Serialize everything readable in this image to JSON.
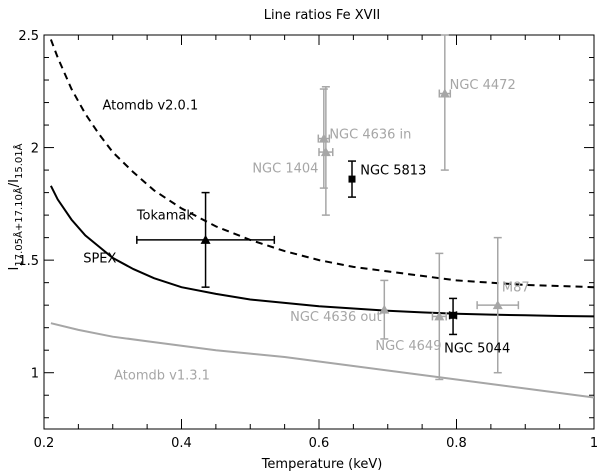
{
  "chart_data": {
    "type": "line",
    "title": "Line ratios Fe XVII",
    "xlabel": "Temperature (keV)",
    "ylabel": {
      "base": "I",
      "num_sub": "17.05Å+17.10Å",
      "slash": "/",
      "base2": "I",
      "den_sub": "15.01Å"
    },
    "xlim": [
      0.2,
      1.0
    ],
    "ylim": [
      0.75,
      2.5
    ],
    "xticks": [
      0.2,
      0.4,
      0.6,
      0.8,
      1.0
    ],
    "xtick_labels": [
      "0.2",
      "0.4",
      "0.6",
      "0.8",
      "1"
    ],
    "yticks": [
      1.0,
      1.5,
      2.0,
      2.5
    ],
    "ytick_labels": [
      "1",
      "1.5",
      "2",
      "2.5"
    ],
    "colors": {
      "black": "#000000",
      "gray": "#a6a6a6"
    },
    "series": [
      {
        "name": "Atomdb v2.0.1",
        "style": "dashed",
        "color": "#000000",
        "x": [
          0.21,
          0.22,
          0.24,
          0.26,
          0.28,
          0.3,
          0.33,
          0.36,
          0.4,
          0.45,
          0.5,
          0.55,
          0.6,
          0.65,
          0.7,
          0.75,
          0.8,
          0.85,
          0.9,
          0.95,
          1.0
        ],
        "y": [
          2.48,
          2.4,
          2.26,
          2.15,
          2.06,
          1.98,
          1.89,
          1.81,
          1.73,
          1.65,
          1.59,
          1.54,
          1.5,
          1.47,
          1.45,
          1.43,
          1.41,
          1.4,
          1.39,
          1.385,
          1.38
        ]
      },
      {
        "name": "SPEX",
        "style": "solid",
        "color": "#000000",
        "x": [
          0.21,
          0.22,
          0.24,
          0.26,
          0.28,
          0.3,
          0.33,
          0.36,
          0.4,
          0.45,
          0.5,
          0.55,
          0.6,
          0.65,
          0.7,
          0.75,
          0.8,
          0.85,
          0.9,
          0.95,
          1.0
        ],
        "y": [
          1.83,
          1.77,
          1.68,
          1.61,
          1.56,
          1.51,
          1.46,
          1.42,
          1.38,
          1.35,
          1.325,
          1.31,
          1.295,
          1.285,
          1.275,
          1.268,
          1.262,
          1.258,
          1.255,
          1.252,
          1.25
        ]
      },
      {
        "name": "Atomdb v1.3.1",
        "style": "solid",
        "color": "#a6a6a6",
        "x": [
          0.21,
          0.25,
          0.3,
          0.35,
          0.4,
          0.45,
          0.5,
          0.55,
          0.6,
          0.65,
          0.7,
          0.75,
          0.8,
          0.85,
          0.9,
          0.95,
          1.0
        ],
        "y": [
          1.22,
          1.19,
          1.16,
          1.14,
          1.12,
          1.1,
          1.085,
          1.07,
          1.05,
          1.03,
          1.01,
          0.99,
          0.97,
          0.95,
          0.93,
          0.91,
          0.89
        ]
      }
    ],
    "points": [
      {
        "name": "Tokamak",
        "marker": "triangle",
        "color": "#000000",
        "x": 0.435,
        "y": 1.59,
        "xlo": 0.335,
        "xhi": 0.535,
        "ylo": 1.38,
        "yhi": 1.8
      },
      {
        "name": "NGC 5813",
        "marker": "square",
        "color": "#000000",
        "x": 0.648,
        "y": 1.86,
        "xlo": 0.648,
        "xhi": 0.648,
        "ylo": 1.78,
        "yhi": 1.94
      },
      {
        "name": "NGC 5044",
        "marker": "square",
        "color": "#000000",
        "x": 0.795,
        "y": 1.255,
        "xlo": 0.79,
        "xhi": 0.8,
        "ylo": 1.17,
        "yhi": 1.33
      },
      {
        "name": "NGC 4472",
        "marker": "triangle",
        "color": "#a6a6a6",
        "x": 0.783,
        "y": 2.24,
        "xlo": 0.775,
        "xhi": 0.791,
        "ylo": 1.9,
        "yhi": 2.5
      },
      {
        "name": "NGC 4636 in",
        "marker": "triangle",
        "color": "#a6a6a6",
        "x": 0.607,
        "y": 2.04,
        "xlo": 0.599,
        "xhi": 0.615,
        "ylo": 1.82,
        "yhi": 2.26
      },
      {
        "name": "NGC 1404",
        "marker": "triangle",
        "color": "#a6a6a6",
        "x": 0.61,
        "y": 1.98,
        "xlo": 0.6,
        "xhi": 0.62,
        "ylo": 1.7,
        "yhi": 2.27
      },
      {
        "name": "NGC 4636 out",
        "marker": "triangle",
        "color": "#a6a6a6",
        "x": 0.695,
        "y": 1.28,
        "xlo": 0.695,
        "xhi": 0.695,
        "ylo": 1.15,
        "yhi": 1.41
      },
      {
        "name": "NGC 4649",
        "marker": "triangle",
        "color": "#a6a6a6",
        "x": 0.775,
        "y": 1.25,
        "xlo": 0.765,
        "xhi": 0.785,
        "ylo": 0.97,
        "yhi": 1.53
      },
      {
        "name": "M87",
        "marker": "triangle",
        "color": "#a6a6a6",
        "x": 0.86,
        "y": 1.3,
        "xlo": 0.83,
        "xhi": 0.89,
        "ylo": 1.0,
        "yhi": 1.6
      }
    ],
    "annotations": [
      {
        "text": "Atomdb v2.0.1",
        "color": "#000000",
        "x": 0.285,
        "y": 2.17
      },
      {
        "text": "Tokamak",
        "color": "#000000",
        "x": 0.335,
        "y": 1.68
      },
      {
        "text": "SPEX",
        "color": "#000000",
        "x": 0.257,
        "y": 1.49
      },
      {
        "text": "NGC 4472",
        "color": "#a6a6a6",
        "x": 0.79,
        "y": 2.26
      },
      {
        "text": "NGC 4636 in",
        "color": "#a6a6a6",
        "x": 0.615,
        "y": 2.04
      },
      {
        "text": "NGC 1404",
        "color": "#a6a6a6",
        "x": 0.503,
        "y": 1.89
      },
      {
        "text": "NGC 5813",
        "color": "#000000",
        "x": 0.66,
        "y": 1.88
      },
      {
        "text": "NGC 4636 out",
        "color": "#a6a6a6",
        "x": 0.558,
        "y": 1.23
      },
      {
        "text": "NGC 4649",
        "color": "#a6a6a6",
        "x": 0.682,
        "y": 1.1
      },
      {
        "text": "NGC 5044",
        "color": "#000000",
        "x": 0.782,
        "y": 1.09
      },
      {
        "text": "M87",
        "color": "#a6a6a6",
        "x": 0.866,
        "y": 1.36
      },
      {
        "text": "Atomdb v1.3.1",
        "color": "#a6a6a6",
        "x": 0.302,
        "y": 0.97
      }
    ]
  }
}
